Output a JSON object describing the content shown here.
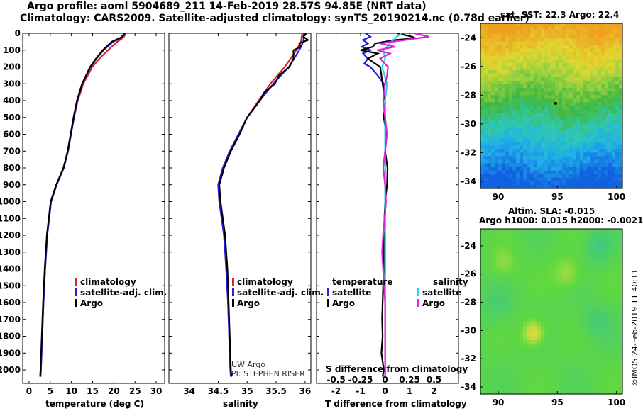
{
  "header": {
    "title_line1": "Argo profile: aoml 5904689_211 14-Feb-2019 28.57S 94.85E (NRT data)",
    "title_line2": "Climatology: CARS2009. Satellite-adjusted climatology: synTS_20190214.nc (0.78d earlier)"
  },
  "colors": {
    "climatology": "#dd2222",
    "satellite": "#2222dd",
    "argo": "#000000",
    "t_diff": "#2222dd",
    "s_sat": "#22dddd",
    "s_argo": "#dd22dd"
  },
  "chart_data": [
    {
      "type": "line",
      "id": "temperature",
      "xlabel": "temperature (deg C)",
      "xlim": [
        -1.5,
        32
      ],
      "ylim": [
        2080,
        0
      ],
      "xticks": [
        0,
        5,
        10,
        15,
        20,
        25,
        30
      ],
      "xtick_labels": [
        "0",
        "5",
        "10",
        "15",
        "20",
        "25",
        "30"
      ],
      "yticks": [
        0,
        100,
        200,
        300,
        400,
        500,
        600,
        700,
        800,
        900,
        1000,
        1100,
        1200,
        1300,
        1400,
        1500,
        1600,
        1700,
        1800,
        1900,
        2000
      ],
      "legend": [
        "climatology",
        "satellite-adj. clim.",
        "Argo"
      ],
      "series": [
        {
          "name": "climatology",
          "color": "#dd2222",
          "y": [
            0,
            25,
            50,
            100,
            150,
            200,
            300,
            400,
            500,
            600,
            700,
            800,
            900,
            1000,
            1200,
            1400,
            1600,
            1800,
            2000,
            2040
          ],
          "x": [
            22.8,
            22.3,
            20.8,
            18.6,
            16.6,
            14.9,
            12.8,
            11.5,
            10.6,
            9.9,
            9.2,
            8.2,
            6.5,
            5.2,
            4.3,
            3.8,
            3.4,
            3.1,
            2.8,
            2.7
          ]
        },
        {
          "name": "satellite-adj. clim.",
          "color": "#2222dd",
          "y": [
            0,
            25,
            50,
            100,
            150,
            200,
            300,
            400,
            500,
            600,
            700,
            800,
            900,
            1000,
            1200,
            1400,
            1600,
            1800,
            2000,
            2040
          ],
          "x": [
            22.5,
            22.0,
            19.8,
            17.6,
            15.9,
            14.5,
            12.6,
            11.4,
            10.6,
            9.9,
            9.2,
            8.2,
            6.5,
            5.2,
            4.3,
            3.8,
            3.4,
            3.1,
            2.8,
            2.7
          ]
        },
        {
          "name": "Argo",
          "color": "#000000",
          "y": [
            0,
            25,
            50,
            100,
            150,
            200,
            300,
            400,
            500,
            600,
            700,
            800,
            900,
            1000,
            1200,
            1400,
            1600,
            1800,
            2000,
            2040
          ],
          "x": [
            22.6,
            21.7,
            19.5,
            17.4,
            15.8,
            14.4,
            12.5,
            11.3,
            10.5,
            9.8,
            9.1,
            8.1,
            6.4,
            5.1,
            4.2,
            3.7,
            3.3,
            3.0,
            2.7,
            2.6
          ]
        }
      ]
    },
    {
      "type": "line",
      "id": "salinity",
      "xlabel": "salinity",
      "xlim": [
        33.65,
        36.1
      ],
      "ylim": [
        2080,
        0
      ],
      "xticks": [
        34,
        34.5,
        35,
        35.5,
        36
      ],
      "xtick_labels": [
        "34",
        "34.5",
        "35",
        "35.5",
        "36"
      ],
      "legend": [
        "climatology",
        "satellite-adj. clim.",
        "Argo"
      ],
      "annotations": [
        "UW Argo",
        "PI: STEPHEN RISER"
      ],
      "series": [
        {
          "name": "climatology",
          "color": "#dd2222",
          "y": [
            0,
            50,
            100,
            200,
            300,
            400,
            500,
            600,
            700,
            800,
            900,
            1000,
            1200,
            1400,
            1600,
            1800,
            2000,
            2040
          ],
          "x": [
            35.95,
            35.93,
            35.85,
            35.65,
            35.4,
            35.2,
            35.0,
            34.85,
            34.7,
            34.58,
            34.5,
            34.52,
            34.6,
            34.64,
            34.67,
            34.69,
            34.71,
            34.72
          ]
        },
        {
          "name": "satellite-adj. clim.",
          "color": "#2222dd",
          "y": [
            0,
            50,
            100,
            200,
            300,
            400,
            500,
            600,
            700,
            800,
            900,
            1000,
            1200,
            1400,
            1600,
            1800,
            2000,
            2040
          ],
          "x": [
            35.98,
            35.97,
            35.9,
            35.72,
            35.45,
            35.22,
            35.0,
            34.85,
            34.7,
            34.58,
            34.5,
            34.52,
            34.6,
            34.64,
            34.67,
            34.69,
            34.71,
            34.72
          ]
        },
        {
          "name": "Argo",
          "color": "#000000",
          "y": [
            0,
            20,
            40,
            60,
            80,
            100,
            150,
            200,
            250,
            300,
            350,
            400,
            500,
            600,
            700,
            800,
            900,
            1000,
            1200,
            1400,
            1600,
            1800,
            2000,
            2040
          ],
          "x": [
            36.02,
            35.97,
            36.05,
            35.9,
            35.93,
            35.8,
            35.8,
            35.73,
            35.55,
            35.48,
            35.3,
            35.22,
            35.0,
            34.87,
            34.72,
            34.6,
            34.52,
            34.54,
            34.62,
            34.66,
            34.68,
            34.7,
            34.72,
            34.73
          ]
        }
      ]
    },
    {
      "type": "line",
      "id": "difference",
      "xlabel": "T difference from climatology",
      "xlabel_top": "S difference from climatology",
      "xlim": [
        -2.8,
        3.0
      ],
      "ylim": [
        2080,
        0
      ],
      "xticks": [
        -2,
        -1,
        0,
        1,
        2
      ],
      "xtick_labels": [
        "-2",
        "-1",
        "0",
        "1",
        "2"
      ],
      "sticks": [
        -0.5,
        -0.25,
        0,
        0.25,
        0.5
      ],
      "stick_labels": [
        "-0.5",
        "-0.25",
        "0",
        "0.25",
        "0.5"
      ],
      "legend_temperature_title": "temperature",
      "legend_salinity_title": "salinity",
      "legend_temperature": [
        "satellite",
        "Argo"
      ],
      "legend_salinity": [
        "satellite",
        "Argo"
      ],
      "series": [
        {
          "name": "T satellite",
          "color": "#2222dd",
          "y": [
            0,
            20,
            40,
            60,
            80,
            100,
            120,
            150,
            180,
            200,
            250,
            300,
            400,
            600,
            800,
            1000,
            1400,
            1800,
            2040
          ],
          "x": [
            -0.8,
            -0.6,
            -0.9,
            -0.7,
            -0.95,
            -0.6,
            -0.9,
            -0.7,
            -0.85,
            -0.6,
            -0.3,
            -0.05,
            0.0,
            0.0,
            0.0,
            0.0,
            0.0,
            0.0,
            0.0
          ]
        },
        {
          "name": "T Argo",
          "color": "#000000",
          "y": [
            0,
            20,
            30,
            40,
            60,
            80,
            100,
            120,
            150,
            200,
            300,
            400,
            500,
            600,
            700,
            800,
            900,
            1000,
            1200,
            1400,
            1500,
            1600,
            1700,
            1800,
            1900,
            2000,
            2040
          ],
          "x": [
            0.5,
            1.1,
            1.25,
            0.4,
            -0.4,
            -0.5,
            -1.0,
            -0.3,
            -0.7,
            -0.2,
            -0.1,
            0.0,
            -0.05,
            0.05,
            0.0,
            0.1,
            0.08,
            0.0,
            -0.05,
            -0.05,
            -0.08,
            -0.1,
            -0.12,
            -0.1,
            -0.15,
            -0.05,
            -0.1
          ]
        },
        {
          "name": "S satellite",
          "color": "#22dddd",
          "y": [
            0,
            20,
            40,
            60,
            80,
            100,
            120,
            150,
            200,
            300,
            400,
            600,
            800,
            1000,
            1400,
            1800,
            2040
          ],
          "x": [
            0.17,
            0.12,
            0.08,
            0.05,
            0.02,
            -0.02,
            -0.01,
            0.0,
            -0.03,
            0.02,
            0.0,
            0.0,
            0.0,
            0.0,
            0.0,
            0.0,
            0.0
          ]
        },
        {
          "name": "S Argo",
          "color": "#dd22dd",
          "y": [
            0,
            20,
            40,
            60,
            80,
            100,
            120,
            150,
            200,
            250,
            300,
            400,
            500,
            600,
            700,
            800,
            900,
            1000,
            1200,
            1300,
            1400,
            1500,
            1600,
            1800,
            2000,
            2040
          ],
          "x": [
            0.3,
            0.45,
            0.2,
            -0.05,
            0.1,
            -0.08,
            0.05,
            -0.05,
            0.03,
            0.02,
            0.0,
            -0.02,
            0.0,
            0.02,
            0.0,
            -0.02,
            0.0,
            0.01,
            -0.02,
            -0.03,
            -0.02,
            -0.01,
            0.0,
            0.0,
            0.0,
            0.0
          ]
        }
      ]
    },
    {
      "type": "heatmap",
      "id": "sst-map",
      "title": "sat. SST: 22.3 Argo: 22.4",
      "xlim": [
        88.5,
        100.5
      ],
      "ylim": [
        -34.5,
        -23.0
      ],
      "xticks": [
        90,
        95,
        100
      ],
      "xtick_labels": [
        "90",
        "95",
        "100"
      ],
      "yticks": [
        -24,
        -26,
        -28,
        -30,
        -32,
        -34
      ],
      "ytick_labels": [
        "-24",
        "-26",
        "-28",
        "-30",
        "-32",
        "-34"
      ],
      "marker": {
        "lon": 94.85,
        "lat": -28.57
      }
    },
    {
      "type": "heatmap",
      "id": "sla-map",
      "title_line1": "Altim. SLA: -0.015",
      "title_line2": "Argo h1000: 0.015 h2000: -0.0021",
      "xlim": [
        88.5,
        100.5
      ],
      "ylim": [
        -34.5,
        -22.8
      ],
      "xticks": [
        90,
        95,
        100
      ],
      "xtick_labels": [
        "90",
        "95",
        "100"
      ],
      "yticks": [
        -24,
        -26,
        -28,
        -30,
        -32,
        -34
      ],
      "ytick_labels": [
        "-24",
        "-26",
        "-28",
        "-30",
        "-32",
        "-34"
      ]
    }
  ],
  "footer": {
    "imos_stamp": "©IMOS 24-Feb-2019 11:40:11"
  }
}
